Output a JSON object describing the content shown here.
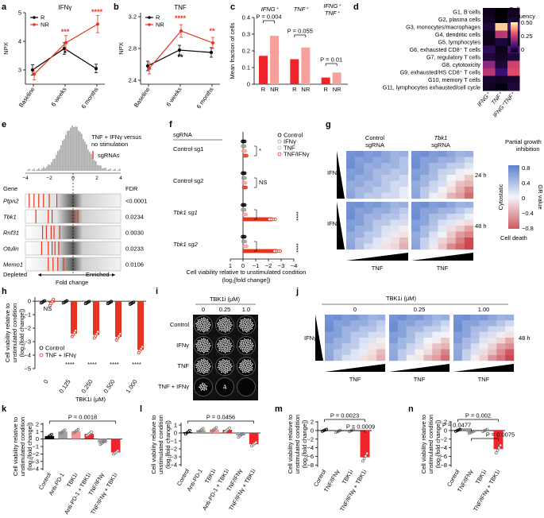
{
  "panels": {
    "a": {
      "letter": "a",
      "title": "IFNγ",
      "ylabel": "NPX",
      "ylim": [
        2.5,
        5.0
      ],
      "yticks": [
        3,
        4,
        5
      ],
      "categories": [
        "Baseline",
        "6 weeks",
        "6 months"
      ],
      "series": [
        {
          "name": "R",
          "values": [
            3.0,
            3.75,
            3.05
          ],
          "err": [
            0.18,
            0.2,
            0.15
          ],
          "color": "#000000"
        },
        {
          "name": "NR",
          "values": [
            2.85,
            3.95,
            4.6
          ],
          "err": [
            0.2,
            0.25,
            0.3
          ],
          "color": "#e8341c"
        }
      ],
      "annotations": [
        {
          "text": "***",
          "cat": 1,
          "y": 4.25,
          "color": "#e8341c"
        },
        {
          "text": "*",
          "cat": 1,
          "y": 3.5,
          "color": "#000000"
        },
        {
          "text": "****",
          "cat": 2,
          "y": 4.95,
          "color": "#e8341c"
        }
      ]
    },
    "b": {
      "letter": "b",
      "title": "TNF",
      "ylabel": "NPX",
      "ylim": [
        2.35,
        3.25
      ],
      "yticks": [
        2.4,
        2.8,
        3.2
      ],
      "categories": [
        "Baseline",
        "6 weeks",
        "6 months"
      ],
      "series": [
        {
          "name": "R",
          "values": [
            2.58,
            2.78,
            2.75
          ],
          "err": [
            0.06,
            0.06,
            0.06
          ],
          "color": "#000000"
        },
        {
          "name": "NR",
          "values": [
            2.55,
            3.02,
            2.87
          ],
          "err": [
            0.07,
            0.08,
            0.07
          ],
          "color": "#e8341c"
        }
      ],
      "annotations": [
        {
          "text": "****",
          "cat": 1,
          "y": 3.15,
          "color": "#e8341c"
        },
        {
          "text": "**",
          "cat": 1,
          "y": 2.66,
          "color": "#000000"
        },
        {
          "text": "**",
          "cat": 2,
          "y": 2.99,
          "color": "#e8341c"
        }
      ]
    },
    "c": {
      "letter": "c",
      "ylabel": "Mean fraction of cells",
      "ylim": [
        0,
        0.4
      ],
      "yticks": [
        "0",
        "0.1",
        "0.2",
        "0.3",
        "0.4"
      ],
      "groups": [
        {
          "title": "IFNG⁺",
          "R": 0.17,
          "NR": 0.29,
          "p": "P = 0.004"
        },
        {
          "title": "TNF⁺",
          "R": 0.15,
          "NR": 0.22,
          "p": "P = 0.055"
        },
        {
          "title": "IFNG⁺ TNF⁺",
          "R": 0.04,
          "NR": 0.07,
          "p": "P = 0.01"
        }
      ],
      "xlabels": [
        "R",
        "NR"
      ],
      "colors": {
        "R": "#f0252b",
        "NR": "#f7a09c"
      }
    },
    "d": {
      "letter": "d",
      "rows": [
        "G1, B cells",
        "G2, plasma cells",
        "G3, monocytes/macrophages",
        "G4, dendritic cells",
        "G5, lymphocytes",
        "G6, exhausted CD8⁺ T cells",
        "G7, regulatory T cells",
        "G8, cytotoxicity",
        "G9, exhausted/HS CD8⁺ T cells",
        "G10, memory T cells",
        "G11, lymphocytes exhausted/cell cycle"
      ],
      "cols": [
        "IFNG⁺",
        "TNF⁺",
        "IFNG⁺TNF⁺"
      ],
      "values": [
        [
          0.02,
          0.0,
          0.03
        ],
        [
          0.03,
          0.0,
          0.05
        ],
        [
          0.05,
          0.45,
          0.12
        ],
        [
          0.02,
          0.25,
          0.05
        ],
        [
          0.02,
          0.05,
          0.02
        ],
        [
          0.08,
          0.02,
          0.12
        ],
        [
          0.05,
          0.03,
          0.05
        ],
        [
          0.2,
          0.05,
          0.28
        ],
        [
          0.25,
          0.1,
          0.3
        ],
        [
          0.04,
          0.03,
          0.04
        ],
        [
          0.03,
          0.01,
          0.05
        ]
      ],
      "legend_title": "Cell frequency",
      "legend_ticks": [
        "0.50",
        "0.25",
        "0"
      ]
    },
    "e": {
      "letter": "e",
      "title": "TNF + IFNγ versus no stimulation",
      "legend": "sgRNAs",
      "gene_header": "Gene",
      "fdr_header": "FDR",
      "genes": [
        {
          "name": "Ptpn2",
          "fdr": "<0.0001",
          "lines": [
            0.04,
            0.09,
            0.14,
            0.19,
            0.25,
            0.33
          ]
        },
        {
          "name": "Tbk1",
          "fdr": "0.0234",
          "lines": [
            0.11,
            0.24,
            0.28,
            0.5,
            0.55
          ]
        },
        {
          "name": "Rnf31",
          "fdr": "0.0030",
          "lines": [
            0.18,
            0.22,
            0.27,
            0.3,
            0.36
          ]
        },
        {
          "name": "Otulin",
          "fdr": "0.0233",
          "lines": [
            0.17,
            0.24,
            0.28,
            0.31,
            0.35
          ]
        },
        {
          "name": "Memo1",
          "fdr": "0.0106",
          "lines": [
            0.24,
            0.29,
            0.34,
            0.4
          ]
        }
      ],
      "axis_ticks": [
        "−4",
        "−2",
        "0",
        "2",
        "4"
      ],
      "depleted": "Depleted",
      "enriched": "Enriched",
      "xlabel": "Fold change"
    },
    "f": {
      "letter": "f",
      "header": "sgRNA",
      "rows": [
        {
          "label": "Control sg1",
          "italic": false
        },
        {
          "label": "Control sg2",
          "italic": false
        },
        {
          "label": "Tbk1 sg1",
          "italic": true
        },
        {
          "label": "Tbk1 sg2",
          "italic": true
        }
      ],
      "legend": [
        "Control",
        "IFNγ",
        "TNF",
        "TNF/IFNγ"
      ],
      "values": [
        [
          0.05,
          0.05,
          0.1,
          0.2
        ],
        [
          0.05,
          0.08,
          0.12,
          0.15
        ],
        [
          0.05,
          0.05,
          0.15,
          2.3
        ],
        [
          0.05,
          0.1,
          0.2,
          2.7
        ]
      ],
      "sig": [
        "*",
        "NS",
        "****",
        "****"
      ],
      "xticks": [
        "1",
        "0",
        "−1",
        "−2",
        "−3",
        "−4"
      ],
      "xlim": [
        1,
        -4
      ],
      "xlabel": "Cell viability relative to unstimulated condition",
      "xlabel2": "(log₂[fold change])"
    },
    "g": {
      "letter": "g",
      "col1": "Control",
      "col1b": "sgRNA",
      "col2": "Tbk1",
      "col2b": "sgRNA",
      "row_label": "IFNγ",
      "times": [
        "24 h",
        "48 h"
      ],
      "xlabel": "TNF",
      "legend_title1": "Partial growth",
      "legend_title2": "inhibition",
      "legend_ticks": [
        "0.8",
        "0.4",
        "0",
        "−0.4",
        "−0.8"
      ],
      "legend_side": "GR value",
      "cytostatic": "Cytostatic",
      "cell_death": "Cell death"
    },
    "h": {
      "letter": "h",
      "ylabel1": "Cell viability relative to",
      "ylabel2": "unstimulated condition",
      "ylabel3": "(log₂[fold change])",
      "yticks": [
        "0",
        "−1",
        "−2",
        "−3",
        "−4",
        "−5"
      ],
      "ylim": [
        0.3,
        -5
      ],
      "categories": [
        "0",
        "0.125",
        "0.250",
        "0.500",
        "1.000"
      ],
      "control": [
        0.05,
        0.05,
        0.1,
        0.1,
        0.15
      ],
      "tnf_ifng": [
        0.1,
        2.4,
        2.5,
        2.65,
        3.6
      ],
      "sig": [
        "NS",
        "****",
        "****",
        "****",
        "****"
      ],
      "legend": [
        "Control",
        "TNF + IFNγ"
      ],
      "xlabel": "TBK1i (μM)"
    },
    "i": {
      "letter": "i",
      "header": "TBK1i (μM)",
      "concs": [
        "0",
        "0.25",
        "1.0"
      ],
      "rows": [
        "Control",
        "IFNγ",
        "TNF",
        "TNF + IFNγ"
      ],
      "density": [
        [
          0.85,
          0.85,
          0.8
        ],
        [
          0.85,
          0.85,
          0.8
        ],
        [
          0.85,
          0.8,
          0.75
        ],
        [
          0.25,
          0.05,
          0.0
        ]
      ]
    },
    "j": {
      "letter": "j",
      "header": "TBK1i (μM)",
      "concs": [
        "0",
        "0.25",
        "1.00"
      ],
      "row_label": "IFNγ",
      "time": "48 h",
      "xlabel": "TNF"
    },
    "k": {
      "letter": "k",
      "p": "P = 0.0018",
      "ylim": [
        -4.2,
        2.2
      ],
      "yticks": [
        "2",
        "1",
        "0",
        "−1",
        "−2",
        "−3",
        "−4"
      ],
      "categories": [
        "Control",
        "Anti-PD-1",
        "TBK1i",
        "Anti-PD-1 + TBK1i",
        "TNF/IFNγ",
        "TNF/IFNγ + TBK1i"
      ],
      "values": [
        0.4,
        1.0,
        1.05,
        0.7,
        -0.5,
        -1.8
      ],
      "colors": [
        "#000000",
        "#a0a0a0",
        "#f59694",
        "#f0252b",
        "#a0a0a0",
        "#f0252b"
      ]
    },
    "l": {
      "letter": "l",
      "p": "P = 0.0456",
      "ylim": [
        -4.2,
        1.3
      ],
      "yticks": [
        "1",
        "0",
        "−1",
        "−2",
        "−3",
        "−4"
      ],
      "categories": [
        "Control",
        "Anti-PD-1",
        "TBK1i",
        "Anti-PD-1 + TBK1i",
        "TNF/IFNγ",
        "TNF/IFNγ + TBK1i"
      ],
      "values": [
        0.1,
        0.35,
        0.45,
        0.4,
        -0.3,
        -1.4
      ],
      "colors": [
        "#000000",
        "#a0a0a0",
        "#f59694",
        "#f0252b",
        "#a0a0a0",
        "#f0252b"
      ]
    },
    "m": {
      "letter": "m",
      "p1": "P = 0.0023",
      "p2": "P = 0.0009",
      "ylim": [
        -8.5,
        2.2
      ],
      "yticks": [
        "2",
        "0",
        "−2",
        "−4",
        "−6",
        "−8"
      ],
      "categories": [
        "Control",
        "TNF/IFNγ",
        "TBK1i",
        "TNF/IFNγ + TBK1i"
      ],
      "values": [
        0.05,
        -0.2,
        0.0,
        -6.2
      ],
      "colors": [
        "#000000",
        "#a0a0a0",
        "#f59694",
        "#f0252b"
      ]
    },
    "n": {
      "letter": "n",
      "p1": "P = 0.002",
      "p2": "P = 0.0477",
      "p3": "P = 0.0075",
      "ylim": [
        -8.5,
        2.2
      ],
      "yticks": [
        "2",
        "0",
        "−2",
        "−4",
        "−6",
        "−8"
      ],
      "categories": [
        "Control",
        "TNF/IFNγ",
        "TBK1i",
        "TNF/IFNγ + TBK1i"
      ],
      "values": [
        0.05,
        -0.4,
        0.0,
        -4.3
      ],
      "colors": [
        "#000000",
        "#a0a0a0",
        "#f59694",
        "#f0252b"
      ]
    }
  },
  "chart_data": [
    {
      "type": "line",
      "panel": "a",
      "title": "IFNγ",
      "ylabel": "NPX",
      "categories": [
        "Baseline",
        "6 weeks",
        "6 months"
      ],
      "series": [
        {
          "name": "R",
          "values": [
            3.0,
            3.75,
            3.05
          ]
        },
        {
          "name": "NR",
          "values": [
            2.85,
            3.95,
            4.6
          ]
        }
      ],
      "ylim": [
        2.5,
        5.0
      ]
    },
    {
      "type": "line",
      "panel": "b",
      "title": "TNF",
      "ylabel": "NPX",
      "categories": [
        "Baseline",
        "6 weeks",
        "6 months"
      ],
      "series": [
        {
          "name": "R",
          "values": [
            2.58,
            2.78,
            2.75
          ]
        },
        {
          "name": "NR",
          "values": [
            2.55,
            3.02,
            2.87
          ]
        }
      ],
      "ylim": [
        2.35,
        3.25
      ]
    },
    {
      "type": "bar",
      "panel": "c",
      "ylabel": "Mean fraction of cells",
      "categories": [
        "IFNG⁺",
        "TNF⁺",
        "IFNG⁺ TNF⁺"
      ],
      "series": [
        {
          "name": "R",
          "values": [
            0.17,
            0.15,
            0.04
          ]
        },
        {
          "name": "NR",
          "values": [
            0.29,
            0.22,
            0.07
          ]
        }
      ],
      "ylim": [
        0,
        0.4
      ]
    },
    {
      "type": "heatmap",
      "panel": "d",
      "legend": "Cell frequency"
    },
    {
      "type": "bar",
      "panel": "h",
      "xlabel": "TBK1i (μM)",
      "categories": [
        "0",
        "0.125",
        "0.250",
        "0.500",
        "1.000"
      ],
      "series": [
        {
          "name": "Control",
          "values": [
            0.05,
            0.05,
            0.1,
            0.1,
            0.15
          ]
        },
        {
          "name": "TNF + IFNγ",
          "values": [
            -0.1,
            -2.4,
            -2.5,
            -2.65,
            -3.6
          ]
        }
      ]
    },
    {
      "type": "bar",
      "panel": "k",
      "categories": [
        "Control",
        "Anti-PD-1",
        "TBK1i",
        "Anti-PD-1 + TBK1i",
        "TNF/IFNγ",
        "TNF/IFNγ + TBK1i"
      ],
      "values": [
        0.4,
        1.0,
        1.05,
        0.7,
        -0.5,
        -1.8
      ]
    },
    {
      "type": "bar",
      "panel": "l",
      "categories": [
        "Control",
        "Anti-PD-1",
        "TBK1i",
        "Anti-PD-1 + TBK1i",
        "TNF/IFNγ",
        "TNF/IFNγ + TBK1i"
      ],
      "values": [
        0.1,
        0.35,
        0.45,
        0.4,
        -0.3,
        -1.4
      ]
    },
    {
      "type": "bar",
      "panel": "m",
      "categories": [
        "Control",
        "TNF/IFNγ",
        "TBK1i",
        "TNF/IFNγ + TBK1i"
      ],
      "values": [
        0.05,
        -0.2,
        0.0,
        -6.2
      ]
    },
    {
      "type": "bar",
      "panel": "n",
      "categories": [
        "Control",
        "TNF/IFNγ",
        "TBK1i",
        "TNF/IFNγ + TBK1i"
      ],
      "values": [
        0.05,
        -0.4,
        0.0,
        -4.3
      ]
    }
  ]
}
